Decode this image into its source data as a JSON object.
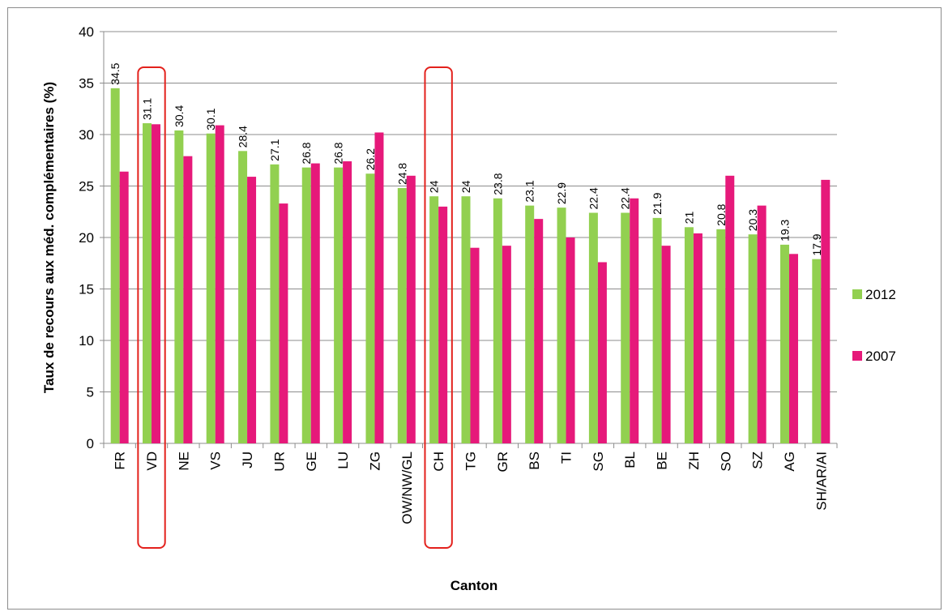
{
  "chart_data": {
    "type": "bar",
    "title": "",
    "xlabel": "Canton",
    "ylabel": "Taux de recours aux méd. complémentaires (%)",
    "ylim": [
      0,
      40
    ],
    "yticks": [
      0,
      5,
      10,
      15,
      20,
      25,
      30,
      35,
      40
    ],
    "grid": true,
    "legend_position": "right",
    "categories": [
      "FR",
      "VD",
      "NE",
      "VS",
      "JU",
      "UR",
      "GE",
      "LU",
      "ZG",
      "OW/NW/GL",
      "CH",
      "TG",
      "GR",
      "BS",
      "TI",
      "SG",
      "BL",
      "BE",
      "ZH",
      "SO",
      "SZ",
      "AG",
      "SH/AR/AI"
    ],
    "series": [
      {
        "name": "2012",
        "color": "#92d050",
        "values": [
          34.5,
          31.1,
          30.4,
          30.1,
          28.4,
          27.1,
          26.8,
          26.8,
          26.2,
          24.8,
          24,
          24,
          23.8,
          23.1,
          22.9,
          22.4,
          22.4,
          21.9,
          21,
          20.8,
          20.3,
          19.3,
          17.9
        ],
        "data_labels": [
          "34.5",
          "31.1",
          "30.4",
          "30.1",
          "28.4",
          "27.1",
          "26.8",
          "26.8",
          "26.2",
          "24.8",
          "24",
          "24",
          "23.8",
          "23.1",
          "22.9",
          "22.4",
          "22.4",
          "21.9",
          "21",
          "20.8",
          "20.3",
          "19.3",
          "17.9"
        ]
      },
      {
        "name": "2007",
        "color": "#e6197a",
        "values": [
          26.4,
          31.0,
          27.9,
          30.9,
          25.9,
          23.3,
          27.2,
          27.4,
          30.2,
          26.0,
          23.0,
          19.0,
          19.2,
          21.8,
          20.0,
          17.6,
          23.8,
          19.2,
          20.4,
          26.0,
          23.1,
          18.4,
          25.6
        ]
      }
    ],
    "highlighted_categories": [
      "VD",
      "CH"
    ],
    "highlight_color": "#e3211c"
  }
}
